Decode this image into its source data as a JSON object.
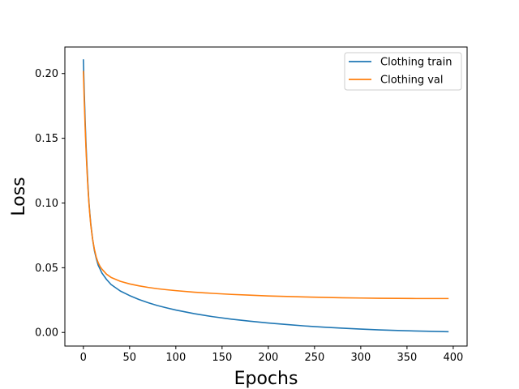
{
  "chart_data": {
    "type": "line",
    "title": "",
    "xlabel": "Epochs",
    "ylabel": "Loss",
    "xlim": [
      -20,
      415
    ],
    "ylim": [
      -0.0105,
      0.2205
    ],
    "xticks": [
      0,
      50,
      100,
      150,
      200,
      250,
      300,
      350,
      400
    ],
    "xtick_labels": [
      "0",
      "50",
      "100",
      "150",
      "200",
      "250",
      "300",
      "350",
      "400"
    ],
    "yticks": [
      0.0,
      0.05,
      0.1,
      0.15,
      0.2
    ],
    "ytick_labels": [
      "0.00",
      "0.05",
      "0.10",
      "0.15",
      "0.20"
    ],
    "grid": false,
    "legend_position": "top-right",
    "series": [
      {
        "name": "Clothing train",
        "color": "#1f77b4",
        "x": [
          0,
          1,
          2,
          3,
          4,
          5,
          6,
          7,
          8,
          10,
          12,
          14,
          16,
          18,
          20,
          25,
          30,
          40,
          50,
          60,
          70,
          80,
          90,
          100,
          120,
          140,
          160,
          180,
          200,
          220,
          240,
          260,
          280,
          300,
          320,
          340,
          360,
          380,
          395
        ],
        "y": [
          0.211,
          0.185,
          0.162,
          0.143,
          0.127,
          0.113,
          0.101,
          0.092,
          0.084,
          0.072,
          0.063,
          0.057,
          0.052,
          0.049,
          0.046,
          0.041,
          0.037,
          0.032,
          0.0285,
          0.0255,
          0.023,
          0.0208,
          0.019,
          0.0173,
          0.0145,
          0.0122,
          0.0103,
          0.0087,
          0.0073,
          0.0061,
          0.005,
          0.0041,
          0.0033,
          0.0026,
          0.002,
          0.0015,
          0.0011,
          0.0008,
          0.0006
        ]
      },
      {
        "name": "Clothing val",
        "color": "#ff7f0e",
        "x": [
          0,
          1,
          2,
          3,
          4,
          5,
          6,
          7,
          8,
          10,
          12,
          14,
          16,
          18,
          20,
          25,
          30,
          40,
          50,
          60,
          70,
          80,
          90,
          100,
          120,
          140,
          160,
          180,
          200,
          220,
          240,
          260,
          280,
          300,
          320,
          340,
          360,
          380,
          395
        ],
        "y": [
          0.202,
          0.178,
          0.157,
          0.139,
          0.124,
          0.111,
          0.1,
          0.091,
          0.083,
          0.072,
          0.064,
          0.058,
          0.054,
          0.051,
          0.049,
          0.045,
          0.0425,
          0.0395,
          0.0375,
          0.036,
          0.0348,
          0.0338,
          0.033,
          0.0323,
          0.0311,
          0.0302,
          0.0294,
          0.0288,
          0.0282,
          0.0278,
          0.0274,
          0.0271,
          0.0268,
          0.0266,
          0.0264,
          0.0263,
          0.0262,
          0.0262,
          0.0262
        ]
      }
    ]
  }
}
